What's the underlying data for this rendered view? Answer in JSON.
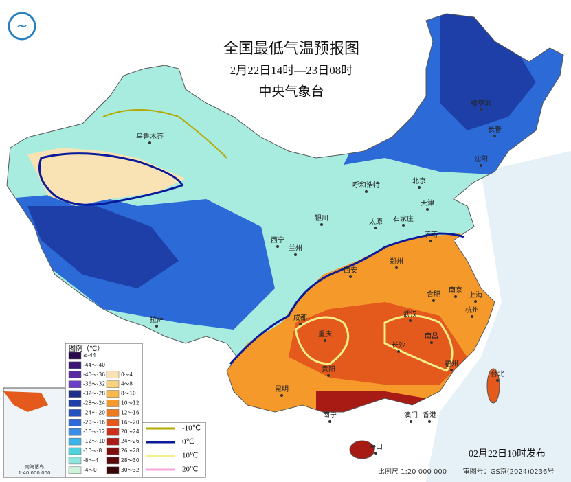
{
  "header": {
    "title": "全国最低气温预报图",
    "period": "2月22日14时—23日08时",
    "agency": "中央气象台"
  },
  "cities": [
    {
      "label": "乌鲁木齐"
    },
    {
      "label": "哈尔滨"
    },
    {
      "label": "长春"
    },
    {
      "label": "沈阳"
    },
    {
      "label": "呼和浩特"
    },
    {
      "label": "北京",
      "color": "#e0201b"
    },
    {
      "label": "天津"
    },
    {
      "label": "银川"
    },
    {
      "label": "太原"
    },
    {
      "label": "石家庄"
    },
    {
      "label": "济南"
    },
    {
      "label": "西宁"
    },
    {
      "label": "兰州"
    },
    {
      "label": "西安"
    },
    {
      "label": "郑州"
    },
    {
      "label": "合肥"
    },
    {
      "label": "南京"
    },
    {
      "label": "上海"
    },
    {
      "label": "杭州"
    },
    {
      "label": "拉萨"
    },
    {
      "label": "成都"
    },
    {
      "label": "重庆"
    },
    {
      "label": "武汉"
    },
    {
      "label": "长沙"
    },
    {
      "label": "南昌"
    },
    {
      "label": "贵阳"
    },
    {
      "label": "福州"
    },
    {
      "label": "台北"
    },
    {
      "label": "昆明"
    },
    {
      "label": "南宁"
    },
    {
      "label": "澳门"
    },
    {
      "label": "香港"
    },
    {
      "label": "海口"
    }
  ],
  "legend": {
    "title": "图例（℃）",
    "items": [
      {
        "label": "≤-44",
        "color": "#2a0a4a"
      },
      {
        "label": "-44～-40",
        "color": "#3d1673"
      },
      {
        "label": "-40～-36",
        "color": "#5a2aa0"
      },
      {
        "label": "-36～-32",
        "color": "#6b3fc8"
      },
      {
        "label": "-32～-28",
        "color": "#1f2f8c"
      },
      {
        "label": "-28～-24",
        "color": "#1f3fa8"
      },
      {
        "label": "-24～-20",
        "color": "#2452c0"
      },
      {
        "label": "-20～-16",
        "color": "#2c6ad8"
      },
      {
        "label": "-16～-12",
        "color": "#3a8ee6"
      },
      {
        "label": "-12～-10",
        "color": "#3cb4e8"
      },
      {
        "label": "-10～-8",
        "color": "#4fd2de"
      },
      {
        "label": "-8～-4",
        "color": "#8fe6de"
      },
      {
        "label": "-4～0",
        "color": "#cdf3da"
      },
      {
        "label": "0～4",
        "color": "#f9e3b4"
      },
      {
        "label": "4～8",
        "color": "#fad27e"
      },
      {
        "label": "8～10",
        "color": "#f8b84a"
      },
      {
        "label": "10～12",
        "color": "#f59a2a"
      },
      {
        "label": "12～16",
        "color": "#ef7b1f"
      },
      {
        "label": "16～20",
        "color": "#e45a1c"
      },
      {
        "label": "20～24",
        "color": "#cc3018"
      },
      {
        "label": "24～26",
        "color": "#a81b14"
      },
      {
        "label": "26～28",
        "color": "#7f1010"
      },
      {
        "label": "28～30",
        "color": "#5a0a0a"
      },
      {
        "label": "30～32",
        "color": "#3a0505"
      }
    ]
  },
  "isotherms": [
    {
      "label": "-10℃",
      "color": "#b5a800"
    },
    {
      "label": "0℃",
      "color": "#0a1a9a"
    },
    {
      "label": "10℃",
      "color": "#f4ef8a"
    },
    {
      "label": "20℃",
      "color": "#f7a8d8"
    }
  ],
  "inset": {
    "label": "南海诸岛",
    "scale": "1:40 000 000"
  },
  "footer": {
    "issued": "02月22日10时发布",
    "scale": "比例尺 1:20 000 000",
    "review": "审图号：GS京(2024)0236号"
  }
}
